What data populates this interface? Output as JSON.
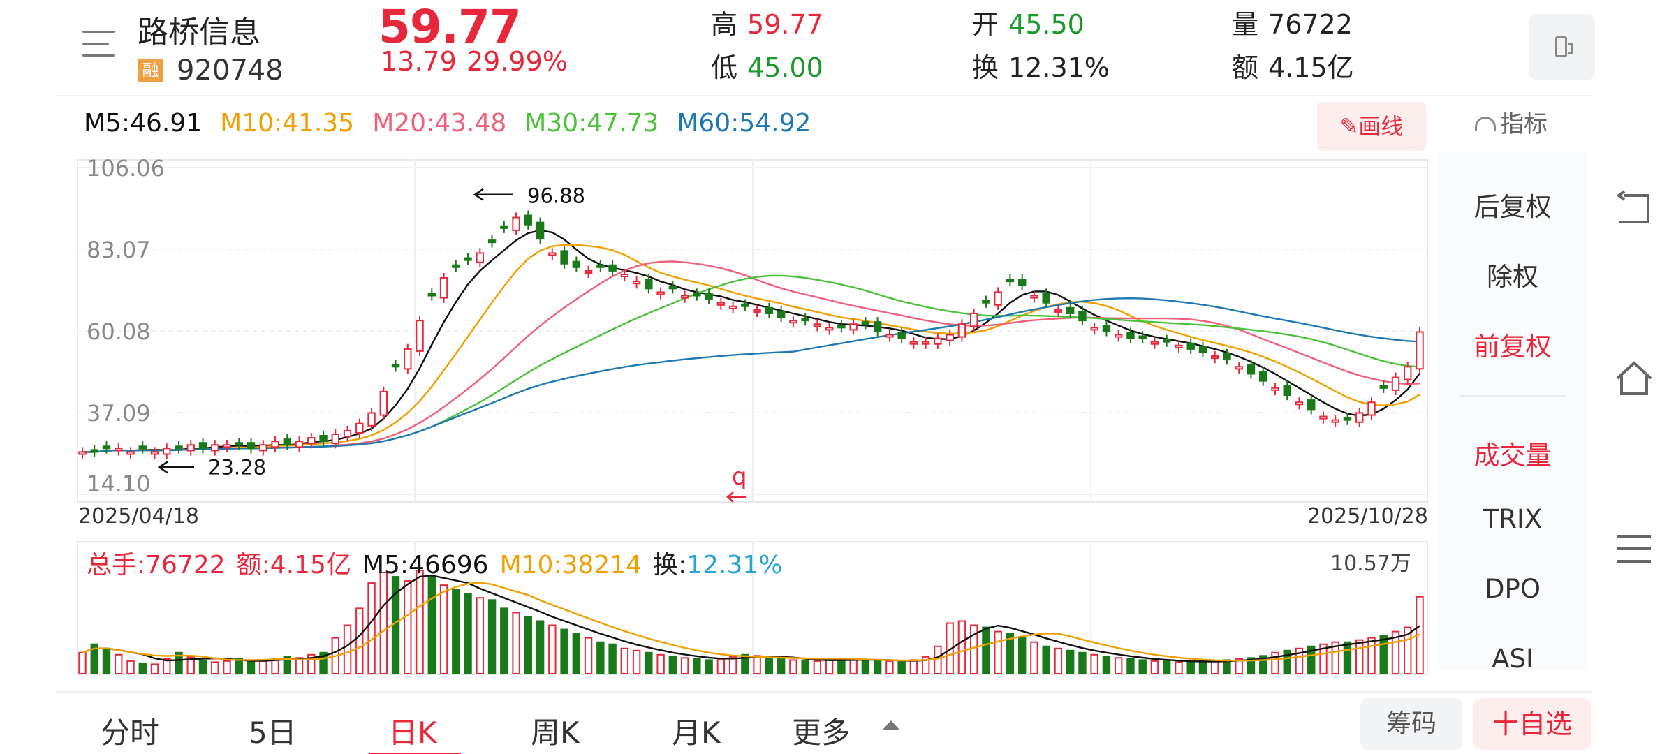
{
  "header": {
    "name": "路桥信息",
    "margin_badge": "融",
    "code": "920748",
    "price": "59.77",
    "change": "13.79",
    "change_pct": "29.99%",
    "quote": {
      "high_label": "高",
      "high": "59.77",
      "low_label": "低",
      "low": "45.00",
      "open_label": "开",
      "open": "45.50",
      "turnover_label": "换",
      "turnover": "12.31%",
      "volume_label": "量",
      "volume": "76722",
      "amount_label": "额",
      "amount": "4.15亿"
    },
    "icons": [
      "menu-icon",
      "phone-landscape-icon"
    ]
  },
  "ma": {
    "m5": "M5:46.91",
    "m10": "M10:41.35",
    "m20": "M20:43.48",
    "m30": "M30:47.73",
    "m60": "M60:54.92",
    "colors": {
      "m5": "#111111",
      "m10": "#f0a000",
      "m20": "#f0607a",
      "m30": "#4cc23a",
      "m60": "#1e78b4"
    }
  },
  "toolbar": {
    "draw_label": "画线",
    "indicator_label": "指标"
  },
  "chart_data": [
    {
      "type": "candlestick",
      "y_ticks": [
        "106.06",
        "83.07",
        "60.08",
        "37.09",
        "14.10"
      ],
      "ylim": [
        14.1,
        106.06
      ],
      "x_start": "2025/04/18",
      "x_end": "2025/10/28",
      "annotations": [
        {
          "text": "96.88",
          "kind": "max"
        },
        {
          "text": "23.28",
          "kind": "min"
        },
        {
          "text": "q",
          "kind": "marker"
        }
      ],
      "series": [
        {
          "name": "M5",
          "color": "#111111"
        },
        {
          "name": "M10",
          "color": "#f0a000"
        },
        {
          "name": "M20",
          "color": "#f0607a"
        },
        {
          "name": "M30",
          "color": "#4cc23a"
        },
        {
          "name": "M60",
          "color": "#1e78b4"
        }
      ],
      "closes_key": [
        26,
        26,
        27,
        27,
        26,
        27,
        26,
        27,
        27,
        28,
        27,
        28,
        28,
        28,
        27,
        28,
        29,
        28,
        29,
        30,
        29,
        31,
        32,
        34,
        37,
        43,
        50,
        55,
        63,
        70,
        75,
        78,
        80,
        82,
        85,
        89,
        92,
        90,
        86,
        82,
        79,
        78,
        77,
        78,
        77,
        76,
        74,
        72,
        71,
        72,
        70,
        70,
        69,
        68,
        67,
        67,
        66,
        65,
        64,
        63,
        63,
        62,
        61,
        61,
        62,
        62,
        60,
        59,
        58,
        57,
        57,
        58,
        59,
        62,
        65,
        68,
        71,
        74,
        73,
        70,
        68,
        66,
        65,
        63,
        61,
        60,
        59,
        58,
        58,
        57,
        57,
        56,
        55,
        54,
        53,
        52,
        50,
        48,
        46,
        44,
        42,
        40,
        38,
        36,
        35,
        35,
        37,
        40,
        44,
        47,
        50,
        59.77
      ]
    },
    {
      "type": "bar",
      "title": "总手:76722",
      "amount": "额:4.15亿",
      "m5": "M5:46696",
      "m10": "M10:38214",
      "turnover_label": "换:",
      "turnover": "12.31%",
      "max_label": "10.57万",
      "ylim": [
        0,
        105700
      ],
      "values": [
        20,
        28,
        24,
        18,
        12,
        10,
        9,
        14,
        20,
        16,
        12,
        11,
        12,
        14,
        12,
        12,
        14,
        16,
        15,
        18,
        20,
        34,
        46,
        62,
        86,
        96,
        92,
        88,
        98,
        92,
        84,
        80,
        76,
        72,
        70,
        62,
        58,
        54,
        50,
        46,
        42,
        38,
        34,
        30,
        28,
        24,
        22,
        20,
        18,
        16,
        15,
        14,
        13,
        14,
        16,
        18,
        17,
        15,
        14,
        13,
        12,
        12,
        13,
        14,
        14,
        13,
        12,
        12,
        11,
        13,
        16,
        26,
        48,
        50,
        46,
        44,
        40,
        38,
        34,
        30,
        26,
        24,
        22,
        20,
        18,
        16,
        15,
        14,
        13,
        12,
        12,
        11,
        11,
        12,
        12,
        13,
        14,
        15,
        17,
        20,
        22,
        24,
        26,
        28,
        30,
        30,
        32,
        34,
        36,
        40,
        44,
        73
      ],
      "up_days": [
        1,
        0,
        0,
        1,
        1,
        0,
        1,
        1,
        0,
        1,
        0,
        1,
        1,
        0,
        0,
        1,
        1,
        0,
        1,
        1,
        0,
        1,
        1,
        1,
        1,
        1,
        0,
        1,
        1,
        0,
        1,
        0,
        0,
        1,
        0,
        0,
        1,
        0,
        0,
        1,
        0,
        0,
        1,
        0,
        0,
        1,
        1,
        0,
        1,
        0,
        1,
        0,
        0,
        1,
        1,
        0,
        1,
        0,
        0,
        1,
        0,
        1,
        1,
        0,
        1,
        0,
        0,
        1,
        0,
        1,
        1,
        1,
        1,
        1,
        1,
        0,
        1,
        0,
        0,
        1,
        0,
        1,
        0,
        0,
        1,
        0,
        1,
        0,
        0,
        1,
        0,
        1,
        0,
        0,
        1,
        0,
        1,
        0,
        0,
        1,
        0,
        1,
        0,
        1,
        1,
        0,
        1,
        1,
        0,
        1,
        1,
        1
      ]
    }
  ],
  "side_panel": {
    "items": [
      "后复权",
      "除权",
      "前复权",
      "成交量",
      "TRIX",
      "DPO",
      "ASI"
    ],
    "active": [
      "前复权",
      "成交量"
    ]
  },
  "nav": {
    "icons": [
      "back-icon",
      "home-icon",
      "recents-icon"
    ]
  },
  "bottom_tabs": {
    "tabs": [
      "分时",
      "5日",
      "日K",
      "周K",
      "月K",
      "更多"
    ],
    "active": "日K",
    "chip_label": "筹码",
    "fav_label": "十自选"
  }
}
